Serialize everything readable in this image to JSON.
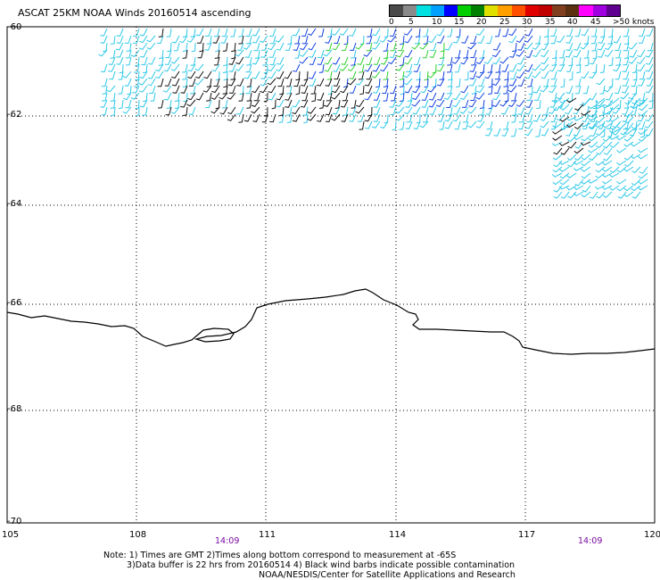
{
  "title": "ASCAT 25KM NOAA Winds 20160514 ascending",
  "scale": {
    "labels": [
      "0",
      "5",
      "10",
      "15",
      "20",
      "25",
      "30",
      "35",
      "40",
      "45",
      ">50 knots"
    ],
    "colors": [
      "#4a4a4a",
      "#8a8a8a",
      "#00e0e0",
      "#00a0ff",
      "#0000ff",
      "#00d000",
      "#008000",
      "#e0e000",
      "#ffa000",
      "#ff5000",
      "#e00000",
      "#c00000",
      "#804020",
      "#5a3010",
      "#ff00ff",
      "#a000e0",
      "#600090"
    ]
  },
  "lat_labels": [
    "-60",
    "-62",
    "-64",
    "-66",
    "-68",
    "-70"
  ],
  "lon_labels": [
    "105",
    "108",
    "111",
    "114",
    "117",
    "120"
  ],
  "times": [
    "14:09",
    "14:09"
  ],
  "notes": [
    "Note: 1) Times are GMT 2)Times along bottom correspond to measurement at -65S",
    "3)Data buffer is 22 hrs from 20160514 4) Black wind barbs indicate possible contamination",
    "NOAA/NESDIS/Center for Satellite Applications and Research"
  ],
  "colors": {
    "coast": "#000000",
    "time_text": "#7a0aa0",
    "barb_cyan": "#2ec8e8",
    "barb_blue": "#1040e0",
    "barb_black": "#111111",
    "barb_green": "#30d030"
  }
}
